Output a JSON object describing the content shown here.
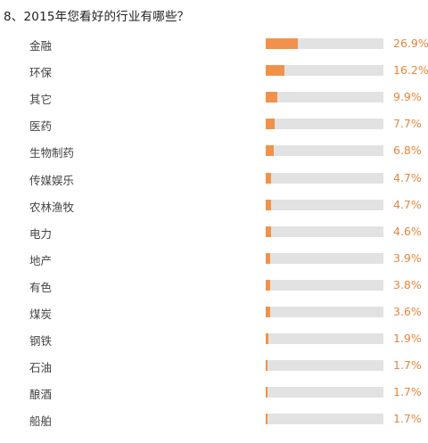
{
  "question": {
    "title": "8、2015年您看好的行业有哪些？"
  },
  "colors": {
    "bar_fill": "#f0924a",
    "bar_track": "#e2e2e2",
    "value_text": "#e8853b"
  },
  "chart_data": {
    "type": "bar",
    "orientation": "horizontal",
    "title": "8、2015年您看好的行业有哪些？",
    "xlabel": "",
    "ylabel": "",
    "xlim": [
      0,
      100
    ],
    "grid": false,
    "legend": "none",
    "categories": [
      "金融",
      "环保",
      "其它",
      "医药",
      "生物制药",
      "传媒娱乐",
      "农林渔牧",
      "电力",
      "地产",
      "有色",
      "煤炭",
      "钢铁",
      "石油",
      "酿酒",
      "船舶"
    ],
    "values": [
      26.9,
      16.2,
      9.9,
      7.7,
      6.8,
      4.7,
      4.7,
      4.6,
      3.9,
      3.8,
      3.6,
      1.9,
      1.7,
      1.7,
      1.7
    ],
    "value_labels": [
      "26.9%",
      "16.2%",
      "9.9%",
      "7.7%",
      "6.8%",
      "4.7%",
      "4.7%",
      "4.6%",
      "3.9%",
      "3.8%",
      "3.6%",
      "1.9%",
      "1.7%",
      "1.7%",
      "1.7%"
    ]
  }
}
